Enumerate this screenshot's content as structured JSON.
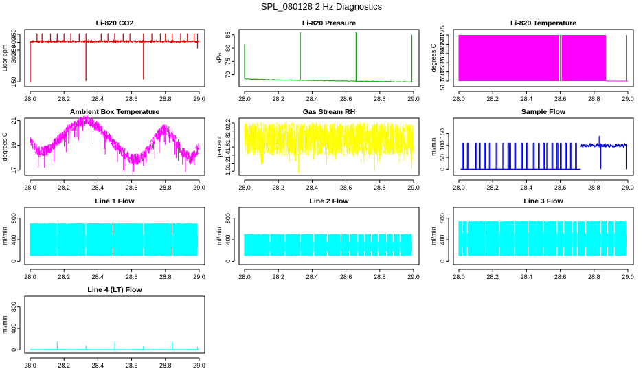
{
  "figure_title": "SPL_080128  2 Hz Diagnostics",
  "chart_data": [
    {
      "id": "co2",
      "type": "line",
      "title": "Li-820 CO2",
      "xlabel": "",
      "ylabel": "Licor ppm",
      "color": "#dd0000",
      "xlim": [
        28.0,
        29.0
      ],
      "ylim": [
        120,
        480
      ],
      "xticks": [
        28.0,
        28.2,
        28.4,
        28.6,
        28.8,
        29.0
      ],
      "xtick_labels": [
        "28.0",
        "28.2",
        "28.4",
        "28.6",
        "28.8",
        "29.0"
      ],
      "yticks": [
        150,
        300,
        350,
        400,
        450
      ],
      "ytick_labels": [
        "150",
        "300",
        "350",
        "400",
        "450"
      ],
      "baseline": 405,
      "spikes_up": [
        28.04,
        28.07,
        28.12,
        28.16,
        28.2,
        28.24,
        28.29,
        28.33,
        28.42,
        28.46,
        28.5,
        28.55,
        28.59,
        28.67,
        28.72,
        28.77,
        28.8,
        28.84,
        28.89,
        28.93,
        28.97,
        28.99
      ],
      "spike_up_value": 455,
      "dips": [
        [
          28.0,
          145
        ],
        [
          28.33,
          155
        ],
        [
          28.67,
          165
        ],
        [
          28.99,
          360
        ]
      ]
    },
    {
      "id": "pressure",
      "type": "line",
      "title": "Li-820 Pressure",
      "xlabel": "",
      "ylabel": "kPa",
      "color": "#00aa00",
      "xlim": [
        28.0,
        29.0
      ],
      "ylim": [
        65.5,
        87
      ],
      "xticks": [
        28.0,
        28.2,
        28.4,
        28.6,
        28.8,
        29.0
      ],
      "xtick_labels": [
        "28.0",
        "28.2",
        "28.4",
        "28.6",
        "28.8",
        "29.0"
      ],
      "yticks": [
        70,
        75,
        80,
        85
      ],
      "ytick_labels": [
        "70",
        "75",
        "80",
        "85"
      ],
      "x": [
        28.0,
        28.02,
        28.1,
        28.2,
        28.3,
        28.4,
        28.5,
        28.6,
        28.7,
        28.8,
        28.9,
        29.0
      ],
      "y": [
        68.5,
        68.3,
        68.2,
        68.0,
        67.9,
        67.8,
        67.7,
        67.6,
        67.5,
        67.4,
        67.3,
        67.2
      ],
      "spikes": [
        [
          28.0,
          81.5
        ],
        [
          28.33,
          86
        ],
        [
          28.66,
          86
        ],
        [
          28.99,
          85
        ]
      ]
    },
    {
      "id": "temperature",
      "type": "line",
      "title": "Li-820 Temperature",
      "xlabel": "",
      "ylabel": "degrees C",
      "color": "#ff00ff",
      "xlim": [
        28.0,
        29.0
      ],
      "ylim": [
        51.247,
        51.278
      ],
      "xticks": [
        28.0,
        28.2,
        28.4,
        28.6,
        28.8,
        29.0
      ],
      "xtick_labels": [
        "28.0",
        "28.2",
        "28.4",
        "28.6",
        "28.8",
        "29.0"
      ],
      "yticks": [
        51.25,
        51.255,
        51.26,
        51.265,
        51.27,
        51.275
      ],
      "ytick_labels": [
        "51.250",
        "51.255",
        "51.260",
        "51.265",
        "51.270",
        "51.275"
      ],
      "high": 51.275,
      "low": 51.25,
      "filled_spans": [
        [
          28.0,
          28.59
        ],
        [
          28.61,
          28.87
        ]
      ],
      "isolated_flips": [
        28.0,
        28.02,
        28.04,
        28.06,
        28.08,
        28.1,
        28.13,
        28.15,
        28.17,
        28.55,
        28.57,
        28.6,
        28.63,
        28.65,
        28.68,
        28.7,
        28.72,
        28.75,
        28.99
      ]
    },
    {
      "id": "ambient",
      "type": "line",
      "title": "Ambient Box Temperature",
      "xlabel": "",
      "ylabel": "degrees C",
      "color": "#ff00ff",
      "xlim": [
        28.0,
        29.0
      ],
      "ylim": [
        16.6,
        21.2
      ],
      "xticks": [
        28.0,
        28.2,
        28.4,
        28.6,
        28.8,
        29.0
      ],
      "xtick_labels": [
        "28.0",
        "28.2",
        "28.4",
        "28.6",
        "28.8",
        "29.0"
      ],
      "yticks": [
        17,
        19,
        21
      ],
      "ytick_labels": [
        "17",
        "19",
        "21"
      ],
      "x": [
        28.0,
        28.05,
        28.1,
        28.15,
        28.2,
        28.25,
        28.3,
        28.34,
        28.4,
        28.45,
        28.5,
        28.55,
        28.6,
        28.65,
        28.7,
        28.75,
        28.8,
        28.85,
        28.9,
        28.95,
        29.0
      ],
      "y": [
        19.3,
        18.5,
        18.6,
        19.2,
        19.9,
        20.5,
        20.9,
        21.0,
        20.5,
        19.8,
        19.1,
        18.4,
        17.9,
        17.9,
        18.7,
        19.8,
        20.4,
        19.6,
        18.5,
        17.9,
        18.9
      ],
      "noise_band": 0.45
    },
    {
      "id": "rh",
      "type": "line",
      "title": "Gas Stream RH",
      "xlabel": "",
      "ylabel": "percent",
      "color": "#ffff00",
      "xlim": [
        28.0,
        29.0
      ],
      "ylim": [
        0.9,
        2.32
      ],
      "xticks": [
        28.0,
        28.2,
        28.4,
        28.6,
        28.8,
        29.0
      ],
      "xtick_labels": [
        "28.0",
        "28.2",
        "28.4",
        "28.6",
        "28.8",
        "29.0"
      ],
      "yticks": [
        1.0,
        1.2,
        1.4,
        1.6,
        1.8,
        2.0,
        2.2
      ],
      "ytick_labels": [
        "1.0",
        "1.2",
        "1.4",
        "1.6",
        "1.8",
        "2.0",
        "2.2"
      ],
      "band_low": 1.4,
      "band_high": 2.2,
      "median": 1.8,
      "dips": [
        [
          28.32,
          0.95
        ],
        [
          28.77,
          1.0
        ],
        [
          28.99,
          1.05
        ]
      ]
    },
    {
      "id": "sample",
      "type": "line",
      "title": "Sample Flow",
      "xlabel": "",
      "ylabel": "ml/min",
      "color": "#0000dd",
      "xlim": [
        28.0,
        29.0
      ],
      "ylim": [
        -25,
        215
      ],
      "xticks": [
        28.0,
        28.2,
        28.4,
        28.6,
        28.8,
        29.0
      ],
      "xtick_labels": [
        "28.0",
        "28.2",
        "28.4",
        "28.6",
        "28.8",
        "29.0"
      ],
      "yticks": [
        0,
        50,
        100,
        150
      ],
      "ytick_labels": [
        "0",
        "50",
        "100",
        "150"
      ],
      "pulse_high": 110,
      "pulse_low": 0,
      "pulse_end": 28.72,
      "pulse_starts": [
        28.02,
        28.05,
        28.1,
        28.12,
        28.15,
        28.18,
        28.22,
        28.26,
        28.29,
        28.3,
        28.33,
        28.37,
        28.4,
        28.44,
        28.47,
        28.5,
        28.52,
        28.55,
        28.58,
        28.6,
        28.63,
        28.66,
        28.69
      ],
      "steady_start": 28.72,
      "steady_value": 100,
      "outliers": [
        [
          28.83,
          140
        ],
        [
          28.84,
          0
        ]
      ],
      "drop_end": [
        28.99,
        0
      ]
    },
    {
      "id": "line1",
      "type": "line",
      "title": "Line 1 Flow",
      "xlabel": "",
      "ylabel": "ml/min",
      "color": "#00ffff",
      "xlim": [
        28.0,
        29.0
      ],
      "ylim": [
        -60,
        1000
      ],
      "xticks": [
        28.0,
        28.2,
        28.4,
        28.6,
        28.8,
        29.0
      ],
      "xtick_labels": [
        "28.0",
        "28.2",
        "28.4",
        "28.6",
        "28.8",
        "29.0"
      ],
      "yticks": [
        0,
        400,
        800
      ],
      "ytick_labels": [
        "0",
        "400",
        "800"
      ],
      "band_top": 710,
      "band_bottom": 100,
      "gaps": [
        28.16,
        28.33,
        28.49,
        28.67,
        28.84,
        28.99
      ]
    },
    {
      "id": "line2",
      "type": "line",
      "title": "Line 2 Flow",
      "xlabel": "",
      "ylabel": "ml/min",
      "color": "#00ffff",
      "xlim": [
        28.0,
        29.0
      ],
      "ylim": [
        -60,
        1000
      ],
      "xticks": [
        28.0,
        28.2,
        28.4,
        28.6,
        28.8,
        29.0
      ],
      "xtick_labels": [
        "28.0",
        "28.2",
        "28.4",
        "28.6",
        "28.8",
        "29.0"
      ],
      "yticks": [
        0,
        400,
        800
      ],
      "ytick_labels": [
        "0",
        "400",
        "800"
      ],
      "band_top": 510,
      "band_bottom": 100,
      "gaps": [
        28.15,
        28.24,
        28.33,
        28.41,
        28.49,
        28.57,
        28.62,
        28.67,
        28.71,
        28.75,
        28.79,
        28.84,
        28.88,
        28.92,
        28.99
      ]
    },
    {
      "id": "line3",
      "type": "line",
      "title": "Line 3 Flow",
      "xlabel": "",
      "ylabel": "ml/min",
      "color": "#00ffff",
      "xlim": [
        28.0,
        29.0
      ],
      "ylim": [
        -60,
        1000
      ],
      "xticks": [
        28.0,
        28.2,
        28.4,
        28.6,
        28.8,
        29.0
      ],
      "xtick_labels": [
        "28.0",
        "28.2",
        "28.4",
        "28.6",
        "28.8",
        "29.0"
      ],
      "yticks": [
        0,
        400,
        800
      ],
      "ytick_labels": [
        "0",
        "400",
        "800"
      ],
      "band_top": 750,
      "band_bottom": 100,
      "gaps": [
        28.02,
        28.05,
        28.16,
        28.24,
        28.33,
        28.41,
        28.5,
        28.58,
        28.62,
        28.67,
        28.7,
        28.75,
        28.84,
        28.88,
        28.92,
        28.99
      ]
    },
    {
      "id": "line4",
      "type": "line",
      "title": "Line 4 (LT) Flow",
      "xlabel": "",
      "ylabel": "ml/min",
      "color": "#00ffff",
      "xlim": [
        28.0,
        29.0
      ],
      "ylim": [
        -60,
        1000
      ],
      "xticks": [
        28.0,
        28.2,
        28.4,
        28.6,
        28.8,
        29.0
      ],
      "xtick_labels": [
        "28.0",
        "28.2",
        "28.4",
        "28.6",
        "28.8",
        "29.0"
      ],
      "yticks": [
        0,
        400,
        800
      ],
      "ytick_labels": [
        "0",
        "400",
        "800"
      ],
      "baseline": 5,
      "spikes": [
        [
          28.16,
          150
        ],
        [
          28.33,
          80
        ],
        [
          28.5,
          140
        ],
        [
          28.67,
          70
        ],
        [
          28.84,
          150
        ],
        [
          28.99,
          60
        ]
      ]
    }
  ]
}
